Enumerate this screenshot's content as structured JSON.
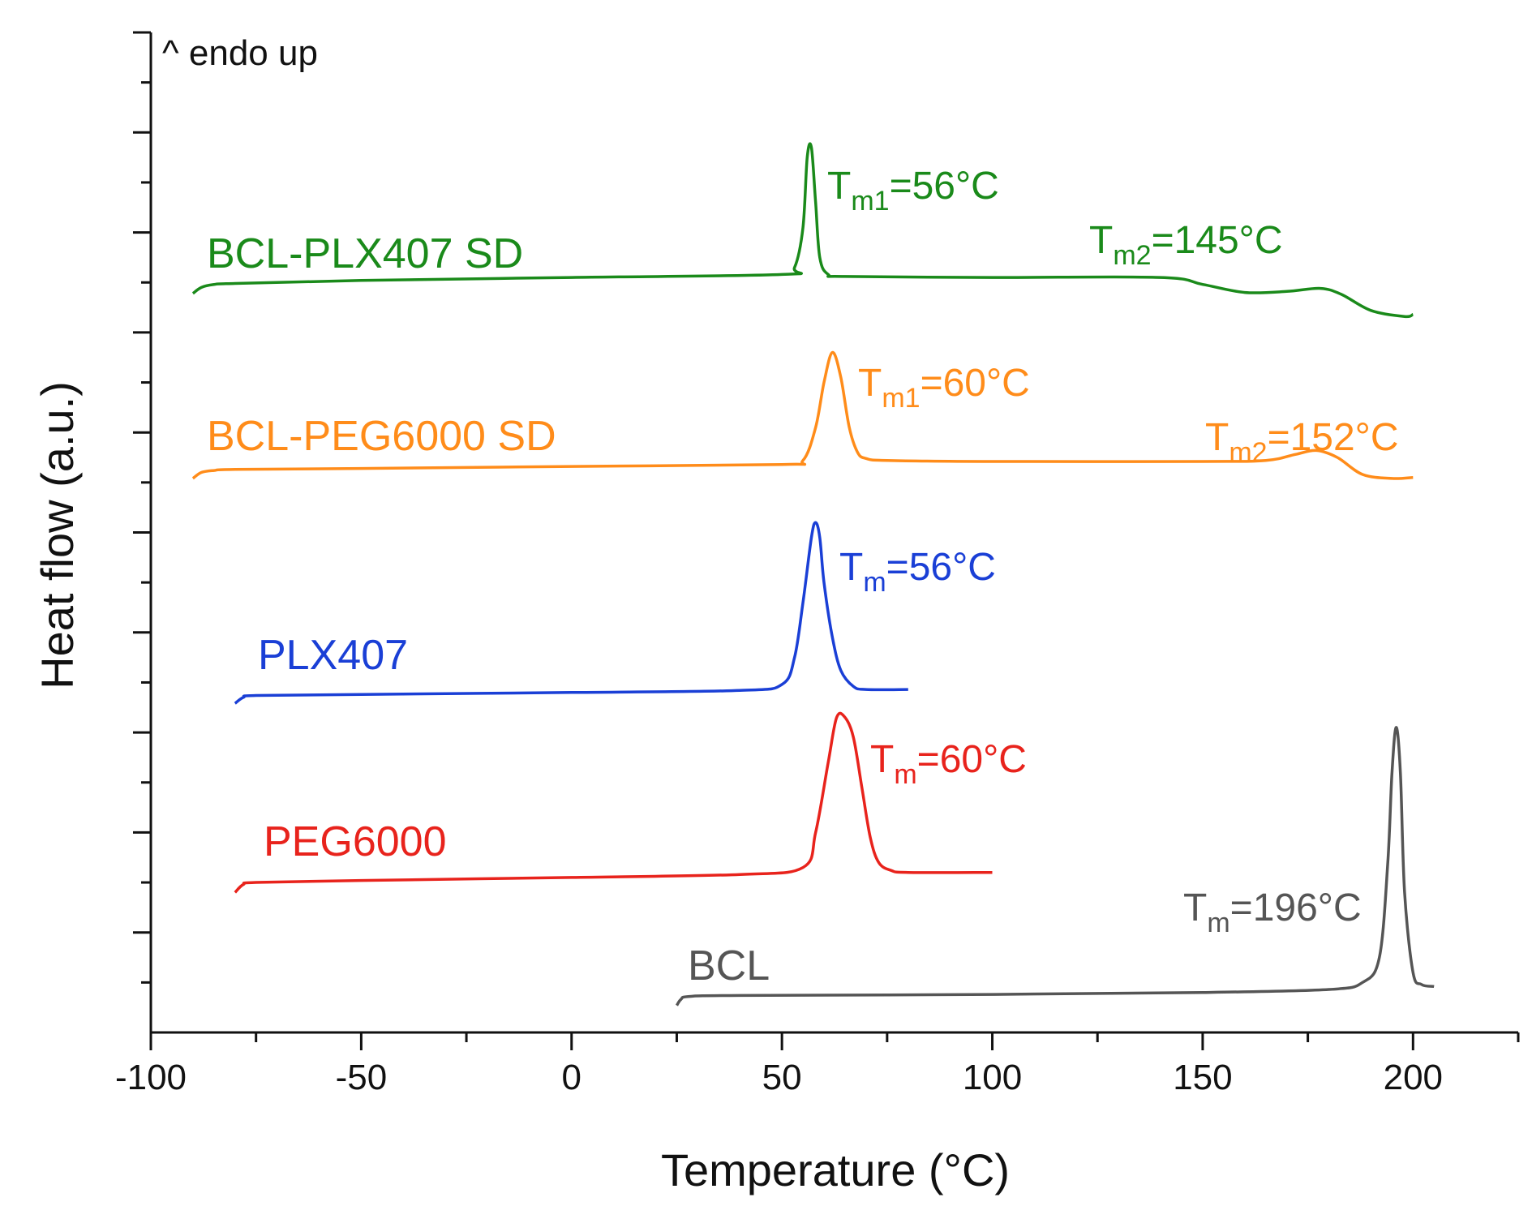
{
  "chart_data": {
    "type": "line",
    "xlabel": "Temperature (°C)",
    "ylabel": "Heat flow (a.u.)",
    "annotation": "^ endo up",
    "xlim": [
      -100,
      225
    ],
    "ylim": [
      0,
      10
    ],
    "xticks": [
      -100,
      -50,
      0,
      50,
      100,
      150,
      200
    ],
    "y_tick_labels_shown": false,
    "series": [
      {
        "name": "BCL-PLX407 SD",
        "color": "#1a8a1a",
        "x": [
          -90,
          -88,
          -85,
          -80,
          -50,
          0,
          50,
          53,
          55,
          56,
          57,
          58,
          59,
          61,
          65,
          100,
          140,
          150,
          160,
          170,
          178,
          183,
          190,
          198,
          200
        ],
        "y": [
          7.39,
          7.45,
          7.48,
          7.49,
          7.52,
          7.55,
          7.58,
          7.65,
          8.05,
          8.75,
          8.85,
          8.3,
          7.75,
          7.58,
          7.56,
          7.55,
          7.55,
          7.48,
          7.4,
          7.41,
          7.44,
          7.38,
          7.22,
          7.16,
          7.18
        ],
        "peaks": [
          {
            "sub": "m1",
            "prefix": "T",
            "value": "=56°C",
            "x": 56
          },
          {
            "sub": "m2",
            "prefix": "T",
            "value": "=145°C",
            "x": 145
          }
        ]
      },
      {
        "name": "BCL-PEG6000 SD",
        "color": "#ff8c1a",
        "x": [
          -90,
          -88,
          -85,
          -80,
          -50,
          0,
          50,
          55,
          58,
          60,
          62,
          64,
          66,
          68,
          70,
          75,
          100,
          150,
          165,
          172,
          177,
          182,
          188,
          195,
          200
        ],
        "y": [
          5.54,
          5.6,
          5.62,
          5.63,
          5.64,
          5.66,
          5.68,
          5.72,
          6.05,
          6.5,
          6.8,
          6.55,
          6.05,
          5.8,
          5.74,
          5.72,
          5.71,
          5.71,
          5.72,
          5.78,
          5.82,
          5.75,
          5.58,
          5.54,
          5.55
        ],
        "peaks": [
          {
            "sub": "m1",
            "prefix": "T",
            "value": "=60°C",
            "x": 60
          },
          {
            "sub": "m2",
            "prefix": "T",
            "value": "=152°C",
            "x": 152
          }
        ]
      },
      {
        "name": "PLX407",
        "color": "#1a3fd6",
        "x": [
          -80,
          -78,
          -75,
          -50,
          0,
          40,
          50,
          53,
          55,
          57,
          58,
          59,
          60,
          62,
          64,
          67,
          70,
          80
        ],
        "y": [
          3.29,
          3.35,
          3.37,
          3.38,
          3.4,
          3.42,
          3.48,
          3.75,
          4.3,
          4.95,
          5.1,
          4.95,
          4.5,
          3.95,
          3.62,
          3.46,
          3.43,
          3.43
        ],
        "peaks": [
          {
            "sub": "m",
            "prefix": "T",
            "value": "=56°C",
            "x": 56
          }
        ]
      },
      {
        "name": "PEG6000",
        "color": "#e8231c",
        "x": [
          -80,
          -78,
          -75,
          -50,
          0,
          40,
          55,
          58,
          61,
          63,
          65,
          67,
          69,
          71,
          73,
          76,
          80,
          100
        ],
        "y": [
          1.4,
          1.48,
          1.5,
          1.52,
          1.55,
          1.58,
          1.65,
          2.0,
          2.7,
          3.15,
          3.15,
          2.95,
          2.45,
          1.95,
          1.7,
          1.62,
          1.6,
          1.6
        ],
        "peaks": [
          {
            "sub": "m",
            "prefix": "T",
            "value": "=60°C",
            "x": 60
          }
        ]
      },
      {
        "name": "BCL",
        "color": "#555555",
        "x": [
          25,
          26,
          28,
          40,
          100,
          150,
          180,
          188,
          192,
          194,
          195,
          196,
          197,
          198,
          200,
          202,
          205
        ],
        "y": [
          0.27,
          0.33,
          0.36,
          0.37,
          0.38,
          0.4,
          0.43,
          0.5,
          0.75,
          1.7,
          2.6,
          3.05,
          2.6,
          1.4,
          0.6,
          0.48,
          0.46
        ],
        "peaks": [
          {
            "sub": "m",
            "prefix": "T",
            "value": "=196°C",
            "x": 196
          }
        ]
      }
    ]
  }
}
